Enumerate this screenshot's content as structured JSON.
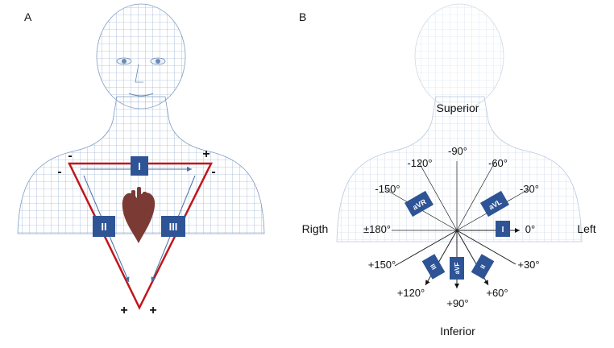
{
  "panel_a": {
    "label": "A",
    "leads": [
      "I",
      "II",
      "III"
    ],
    "signs": {
      "top_left_outer": "-",
      "top_left_inner": "-",
      "top_right_outer": "+",
      "top_right_inner": "-",
      "bottom_left": "+",
      "bottom_right": "+"
    },
    "colors": {
      "triangle": "#c0161c",
      "badge": "#2e5496",
      "heart": "#7b3a34",
      "arrow": "#4a6fa5"
    }
  },
  "panel_b": {
    "label": "B",
    "superior": "Superior",
    "inferior": "Inferior",
    "right": "Rigth",
    "left": "Left",
    "angles": {
      "m90": "-90°",
      "m120": "-120°",
      "m60": "-60°",
      "m150": "-150°",
      "m30": "-30°",
      "pm180": "±180°",
      "p0": "0°",
      "p150": "+150°",
      "p30": "+30°",
      "p120": "+120°",
      "p90": "+90°",
      "p60": "+60°"
    },
    "leads": {
      "aVR": "aVR",
      "aVL": "aVL",
      "I": "I",
      "III": "III",
      "aVF": "aVF",
      "II": "II"
    }
  }
}
